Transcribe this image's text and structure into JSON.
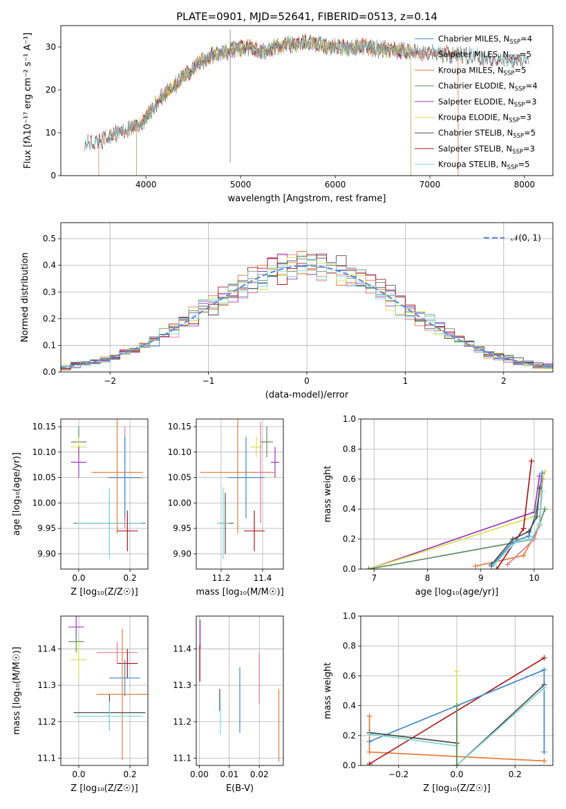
{
  "chart_data": [
    {
      "id": "spectrum",
      "type": "line",
      "title": "PLATE=0901, MJD=52641, FIBERID=0513, z=0.14",
      "xlabel": "wavelength [Angstrom, rest frame]",
      "ylabel": "Flux [fλ10⁻¹⁷ erg cm⁻² s⁻¹ A⁻¹]",
      "xlim": [
        3100,
        8300
      ],
      "ylim": [
        0,
        35
      ],
      "xticks": [
        4000,
        5000,
        6000,
        7000,
        8000
      ],
      "yticks": [
        0,
        10,
        20,
        30
      ],
      "legend": "top-right",
      "wavelength": [
        3350,
        3450,
        3550,
        3650,
        3750,
        3850,
        3950,
        4050,
        4150,
        4250,
        4350,
        4450,
        4550,
        4650,
        4750,
        4850,
        4950,
        5050,
        5150,
        5250,
        5350,
        5450,
        5550,
        5650,
        5750,
        5850,
        5950,
        6050,
        6150,
        6250,
        6350,
        6450,
        6550,
        6650,
        6750,
        6850,
        6950,
        7050,
        7150,
        7250,
        7350,
        7450,
        7550,
        7650,
        7750,
        7850,
        7950,
        8050
      ],
      "flux": [
        7.5,
        7.8,
        8.5,
        9.5,
        10.5,
        11,
        12,
        15,
        18,
        20,
        22,
        24,
        26,
        27.5,
        28.5,
        29,
        29.5,
        30,
        29.5,
        29,
        30,
        30.5,
        30.5,
        31,
        31,
        30.5,
        30,
        30,
        29.5,
        30,
        30,
        29.5,
        29.5,
        29,
        29,
        29,
        28.5,
        28.5,
        28.5,
        28,
        28,
        28,
        27.5,
        27.5,
        27,
        27,
        27,
        26.5
      ],
      "series": [
        {
          "name": "Chabrier MILES, N_SSP=4",
          "color": "#3f86c9",
          "range": [
            3500,
            7300
          ]
        },
        {
          "name": "Salpeter MILES, N_SSP=5",
          "color": "#e07b91",
          "range": [
            3500,
            7300
          ]
        },
        {
          "name": "Kroupa MILES, N_SSP=5",
          "color": "#e07b39",
          "range": [
            3500,
            7300
          ]
        },
        {
          "name": "Chabrier ELODIE, N_SSP=4",
          "color": "#5e8b5e",
          "range": [
            3900,
            6800
          ]
        },
        {
          "name": "Salpeter ELODIE, N_SSP=3",
          "color": "#9b36b8",
          "range": [
            3900,
            6800
          ]
        },
        {
          "name": "Kroupa ELODIE, N_SSP=3",
          "color": "#d4e14f",
          "range": [
            3900,
            6800
          ]
        },
        {
          "name": "Chabrier STELIB, N_SSP=5",
          "color": "#4a4a4a",
          "range": [
            3350,
            8050
          ]
        },
        {
          "name": "Salpeter STELIB, N_SSP=3",
          "color": "#a8181c",
          "range": [
            3350,
            8050
          ]
        },
        {
          "name": "Kroupa STELIB, N_SSP=5",
          "color": "#7fd6d6",
          "range": [
            3350,
            8050
          ]
        }
      ],
      "legend_labels": [
        {
          "pre": "Chabrier MILES, N",
          "sub": "SSP",
          "post": "=4"
        },
        {
          "pre": "Salpeter MILES, N",
          "sub": "SSP",
          "post": "=5"
        },
        {
          "pre": "Kroupa MILES, N",
          "sub": "SSP",
          "post": "=5"
        },
        {
          "pre": "Chabrier ELODIE, N",
          "sub": "SSP",
          "post": "=4"
        },
        {
          "pre": "Salpeter ELODIE, N",
          "sub": "SSP",
          "post": "=3"
        },
        {
          "pre": "Kroupa ELODIE, N",
          "sub": "SSP",
          "post": "=3"
        },
        {
          "pre": "Chabrier STELIB, N",
          "sub": "SSP",
          "post": "=5"
        },
        {
          "pre": "Salpeter STELIB, N",
          "sub": "SSP",
          "post": "=3"
        },
        {
          "pre": "Kroupa STELIB, N",
          "sub": "SSP",
          "post": "=5"
        }
      ]
    },
    {
      "id": "residuals",
      "type": "line",
      "xlabel": "(data-model)/error",
      "ylabel": "Normed distribution",
      "xlim": [
        -2.5,
        2.5
      ],
      "ylim": [
        0,
        0.56
      ],
      "xticks": [
        -2,
        -1,
        0,
        1,
        2
      ],
      "yticks": [
        0.0,
        0.1,
        0.2,
        0.3,
        0.4,
        0.5
      ],
      "grid": true,
      "legend": "top-right",
      "reference_label": "𝒩(0, 1)",
      "reference": "normal(0,1)",
      "bin_width": 0.1
    },
    {
      "id": "age_vs_Z",
      "type": "scatter",
      "xlabel": "Z [log₁₀(Z/Z☉)]",
      "ylabel": "age  [log₁₀(age/yr)]",
      "xlim": [
        -0.07,
        0.27
      ],
      "ylim": [
        9.87,
        10.165
      ],
      "xticks": [
        0.0,
        0.2
      ],
      "yticks": [
        9.9,
        9.95,
        10.0,
        10.05,
        10.1,
        10.15
      ],
      "points": [
        {
          "x": 0.0,
          "xerr": 0.03,
          "y": 10.12,
          "yerr": 0.03,
          "color": "#5e8b5e"
        },
        {
          "x": 0.0,
          "xerr": 0.03,
          "y": 10.11,
          "yerr": 0.02,
          "color": "#d4e14f"
        },
        {
          "x": 0.0,
          "xerr": 0.03,
          "y": 10.08,
          "yerr": 0.03,
          "color": "#9b36b8"
        },
        {
          "x": 0.15,
          "xerr": 0.1,
          "y": 10.06,
          "yerr": 0.12,
          "color": "#e07b39"
        },
        {
          "x": 0.18,
          "xerr": 0.07,
          "y": 10.05,
          "yerr": 0.1,
          "color": "#e07b91"
        },
        {
          "x": 0.18,
          "xerr": 0.06,
          "y": 10.05,
          "yerr": 0.08,
          "color": "#3f86c9"
        },
        {
          "x": 0.12,
          "xerr": 0.14,
          "y": 9.96,
          "yerr": 0.06,
          "color": "#4a4a4a"
        },
        {
          "x": 0.12,
          "xerr": 0.13,
          "y": 9.96,
          "yerr": 0.07,
          "color": "#7fd6d6"
        },
        {
          "x": 0.19,
          "xerr": 0.04,
          "y": 9.945,
          "yerr": 0.04,
          "color": "#a8181c"
        }
      ]
    },
    {
      "id": "age_vs_mass",
      "type": "scatter",
      "xlabel": "mass [log₁₀(M/M☉)]",
      "ylim": [
        9.87,
        10.165
      ],
      "xlim": [
        11.08,
        11.5
      ],
      "xticks": [
        11.2,
        11.4
      ],
      "yticks": [
        9.9,
        9.95,
        10.0,
        10.05,
        10.1,
        10.15
      ],
      "points": [
        {
          "x": 11.42,
          "xerr": 0.03,
          "y": 10.12,
          "yerr": 0.03,
          "color": "#5e8b5e"
        },
        {
          "x": 11.37,
          "xerr": 0.03,
          "y": 10.11,
          "yerr": 0.02,
          "color": "#d4e14f"
        },
        {
          "x": 11.46,
          "xerr": 0.02,
          "y": 10.08,
          "yerr": 0.03,
          "color": "#9b36b8"
        },
        {
          "x": 11.28,
          "xerr": 0.18,
          "y": 10.06,
          "yerr": 0.12,
          "color": "#e07b39"
        },
        {
          "x": 11.39,
          "xerr": 0.04,
          "y": 10.06,
          "yerr": 0.1,
          "color": "#e07b91"
        },
        {
          "x": 11.32,
          "xerr": 0.09,
          "y": 10.05,
          "yerr": 0.08,
          "color": "#3f86c9"
        },
        {
          "x": 11.22,
          "xerr": 0.04,
          "y": 9.96,
          "yerr": 0.06,
          "color": "#4a4a4a"
        },
        {
          "x": 11.21,
          "xerr": 0.03,
          "y": 9.96,
          "yerr": 0.07,
          "color": "#7fd6d6"
        },
        {
          "x": 11.36,
          "xerr": 0.05,
          "y": 9.945,
          "yerr": 0.04,
          "color": "#a8181c"
        }
      ]
    },
    {
      "id": "weight_vs_age",
      "type": "line",
      "xlabel": "age  [log₁₀(age/yr)]",
      "ylabel": "mass weight",
      "xlim": [
        6.75,
        10.35
      ],
      "ylim": [
        0,
        1.0
      ],
      "xticks": [
        7,
        8,
        9,
        10
      ],
      "yticks": [
        0.0,
        0.2,
        0.4,
        0.6,
        0.8,
        1.0
      ],
      "series": [
        {
          "color": "#9b36b8",
          "x": [
            6.9,
            10.0,
            10.1
          ],
          "y": [
            0.0,
            0.38,
            0.62
          ]
        },
        {
          "color": "#d4e14f",
          "x": [
            6.9,
            10.0,
            10.2
          ],
          "y": [
            0.0,
            0.35,
            0.65
          ]
        },
        {
          "color": "#5e8b5e",
          "x": [
            6.9,
            10.0,
            10.2
          ],
          "y": [
            0.0,
            0.2,
            0.4
          ]
        },
        {
          "color": "#e07b39",
          "x": [
            8.9,
            9.8,
            10.1,
            10.15
          ],
          "y": [
            0.02,
            0.09,
            0.29,
            0.6
          ]
        },
        {
          "color": "#a8181c",
          "x": [
            9.3,
            9.8,
            9.95
          ],
          "y": [
            0.0,
            0.27,
            0.72
          ]
        },
        {
          "color": "#e07b91",
          "x": [
            9.5,
            10.0,
            10.1,
            10.15
          ],
          "y": [
            0.03,
            0.2,
            0.3,
            0.6
          ]
        },
        {
          "color": "#3f86c9",
          "x": [
            9.2,
            9.6,
            9.9,
            10.05,
            10.15
          ],
          "y": [
            0.02,
            0.18,
            0.22,
            0.4,
            0.64
          ]
        },
        {
          "color": "#4a4a4a",
          "x": [
            9.2,
            9.6,
            9.9,
            10.05,
            10.1
          ],
          "y": [
            0.03,
            0.2,
            0.25,
            0.35,
            0.54
          ]
        },
        {
          "color": "#7fd6d6",
          "x": [
            9.25,
            9.65,
            9.95,
            10.1,
            10.15
          ],
          "y": [
            0.03,
            0.18,
            0.2,
            0.3,
            0.52
          ]
        }
      ]
    },
    {
      "id": "mass_vs_Z",
      "type": "scatter",
      "xlabel": "Z [log₁₀(Z/Z☉)]",
      "ylabel": "mass [log₁₀(M/M☉)]",
      "xlim": [
        -0.07,
        0.27
      ],
      "ylim": [
        11.08,
        11.49
      ],
      "xticks": [
        0.0,
        0.2
      ],
      "yticks": [
        11.1,
        11.2,
        11.3,
        11.4
      ],
      "points": [
        {
          "x": -0.01,
          "xerr": 0.03,
          "y": 11.46,
          "yerr": 0.03,
          "color": "#9b36b8"
        },
        {
          "x": -0.01,
          "xerr": 0.03,
          "y": 11.42,
          "yerr": 0.03,
          "color": "#5e8b5e"
        },
        {
          "x": 0.0,
          "xerr": 0.03,
          "y": 11.37,
          "yerr": 0.05,
          "color": "#d4e14f"
        },
        {
          "x": 0.15,
          "xerr": 0.08,
          "y": 11.39,
          "yerr": 0.03,
          "color": "#e07b91"
        },
        {
          "x": 0.19,
          "xerr": 0.04,
          "y": 11.36,
          "yerr": 0.04,
          "color": "#a8181c"
        },
        {
          "x": 0.18,
          "xerr": 0.06,
          "y": 11.32,
          "yerr": 0.05,
          "color": "#3f86c9"
        },
        {
          "x": 0.17,
          "xerr": 0.1,
          "y": 11.275,
          "yerr": 0.18,
          "color": "#e07b39"
        },
        {
          "x": 0.12,
          "xerr": 0.14,
          "y": 11.225,
          "yerr": 0.05,
          "color": "#4a4a4a"
        },
        {
          "x": 0.12,
          "xerr": 0.13,
          "y": 11.215,
          "yerr": 0.04,
          "color": "#7fd6d6"
        }
      ]
    },
    {
      "id": "mass_vs_ebv",
      "type": "scatter",
      "xlabel": "E(B-V)",
      "xlim": [
        -0.001,
        0.028
      ],
      "ylim": [
        11.08,
        11.49
      ],
      "xticks": [
        0.0,
        0.01,
        0.02
      ],
      "yticks": [
        11.1,
        11.2,
        11.3,
        11.4
      ],
      "points": [
        {
          "x": 0.0003,
          "y": 11.44,
          "yerr": 0.04,
          "color": "#9b36b8"
        },
        {
          "x": 0.0002,
          "y": 11.36,
          "yerr": 0.05,
          "color": "#a8181c"
        },
        {
          "x": 0.0068,
          "y": 11.26,
          "yerr": 0.03,
          "color": "#4a4a4a"
        },
        {
          "x": 0.007,
          "y": 11.215,
          "yerr": 0.05,
          "color": "#7fd6d6"
        },
        {
          "x": 0.0135,
          "y": 11.26,
          "yerr": 0.09,
          "color": "#3f86c9"
        },
        {
          "x": 0.02,
          "y": 11.32,
          "yerr": 0.07,
          "color": "#e07b91"
        },
        {
          "x": 0.0265,
          "y": 11.19,
          "yerr": 0.1,
          "color": "#e07b39"
        }
      ]
    },
    {
      "id": "weight_vs_Z",
      "type": "line",
      "xlabel": "Z [log₁₀(Z/Z☉)]",
      "ylabel": "mass weight",
      "xlim": [
        -0.33,
        0.33
      ],
      "ylim": [
        0,
        1.0
      ],
      "xticks": [
        -0.2,
        0.0,
        0.2
      ],
      "yticks": [
        0.0,
        0.2,
        0.4,
        0.6,
        0.8,
        1.0
      ],
      "series": [
        {
          "color": "#e07b39",
          "x": [
            -0.3,
            -0.3,
            0.3
          ],
          "y": [
            0.33,
            0.09,
            0.03
          ]
        },
        {
          "color": "#a8181c",
          "x": [
            -0.3,
            0.3
          ],
          "y": [
            0.01,
            0.72
          ]
        },
        {
          "color": "#3f86c9",
          "x": [
            -0.3,
            0.0,
            0.3,
            0.3
          ],
          "y": [
            0.16,
            0.4,
            0.64,
            0.09
          ]
        },
        {
          "color": "#4a4a4a",
          "x": [
            -0.3,
            0.0,
            0.0,
            0.3
          ],
          "y": [
            0.22,
            0.15,
            0.0,
            0.54
          ]
        },
        {
          "color": "#7fd6d6",
          "x": [
            -0.3,
            0.0,
            0.0,
            0.3
          ],
          "y": [
            0.21,
            0.13,
            0.0,
            0.52
          ]
        },
        {
          "color": "#d4e14f",
          "x": [
            0.0,
            0.0
          ],
          "y": [
            0.0,
            0.63
          ]
        },
        {
          "color": "#5e8b5e",
          "x": [
            0.0,
            0.0
          ],
          "y": [
            0.0,
            0.4
          ]
        }
      ]
    }
  ]
}
